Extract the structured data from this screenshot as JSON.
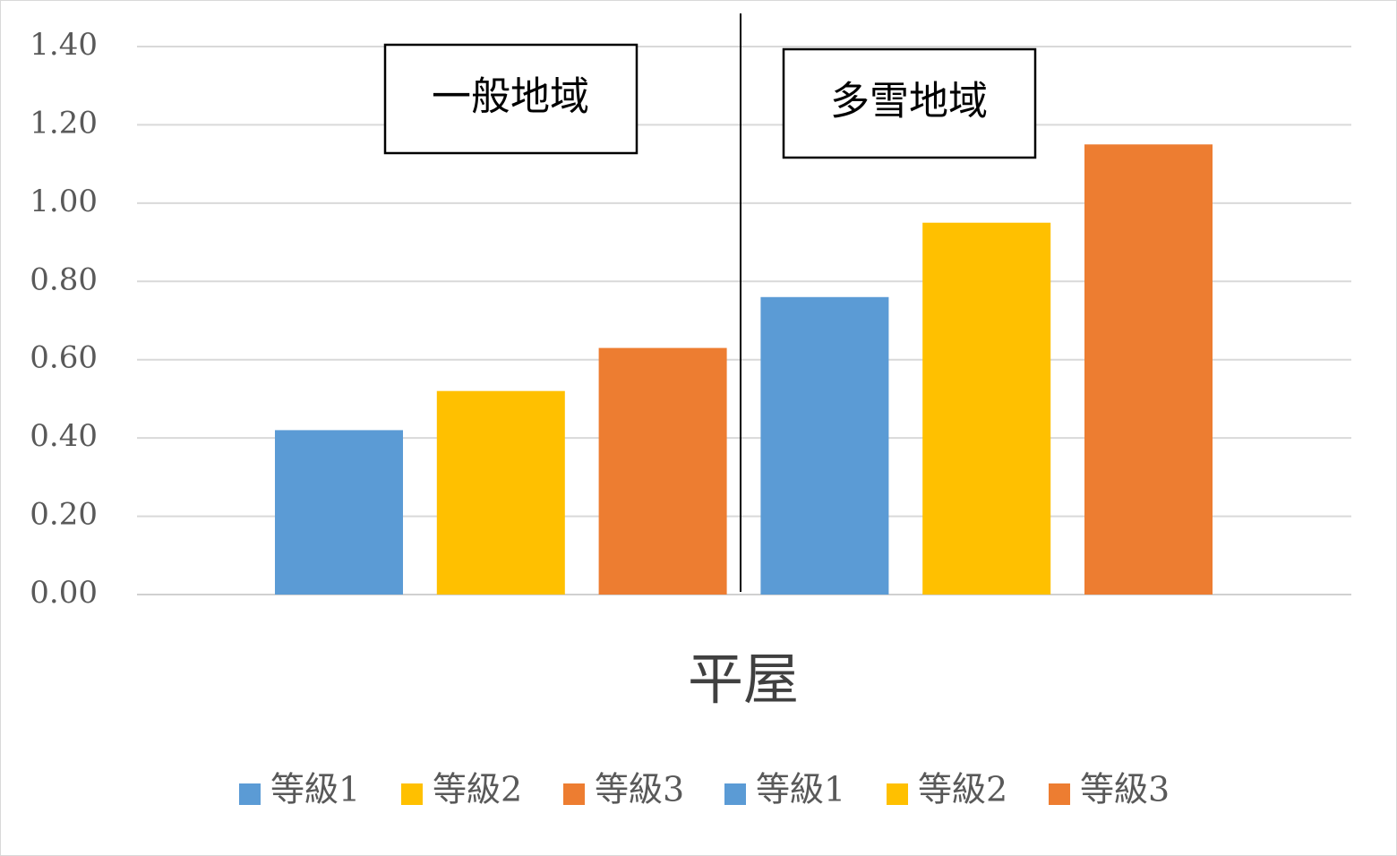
{
  "chart_data": {
    "type": "bar",
    "title": "",
    "xlabel": "平屋",
    "ylabel": "",
    "ylim": [
      0,
      1.4
    ],
    "yticks": [
      "0.00",
      "0.20",
      "0.40",
      "0.60",
      "0.80",
      "1.00",
      "1.20",
      "1.40"
    ],
    "grid": true,
    "legend_position": "bottom",
    "categories": [
      "平屋"
    ],
    "regions": [
      {
        "label": "一般地域"
      },
      {
        "label": "多雪地域"
      }
    ],
    "series": [
      {
        "name": "等級1",
        "region": 0,
        "color": "#5B9BD5",
        "values": [
          0.42
        ]
      },
      {
        "name": "等級2",
        "region": 0,
        "color": "#FFC000",
        "values": [
          0.52
        ]
      },
      {
        "name": "等級3",
        "region": 0,
        "color": "#ED7D31",
        "values": [
          0.63
        ]
      },
      {
        "name": "等級1",
        "region": 1,
        "color": "#5B9BD5",
        "values": [
          0.76
        ]
      },
      {
        "name": "等級2",
        "region": 1,
        "color": "#FFC000",
        "values": [
          0.95
        ]
      },
      {
        "name": "等級3",
        "region": 1,
        "color": "#ED7D31",
        "values": [
          1.15
        ]
      }
    ]
  }
}
